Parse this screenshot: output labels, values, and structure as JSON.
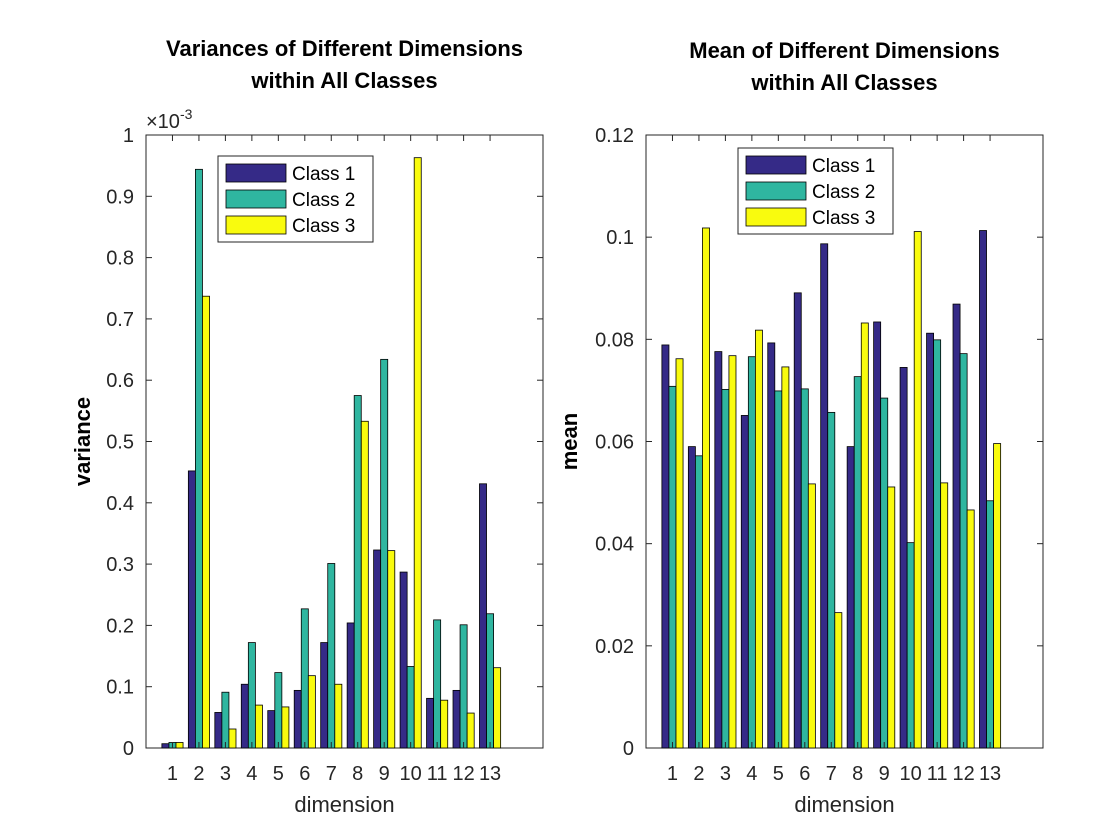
{
  "colors": {
    "class1": "#352a87",
    "class2": "#2fb6a0",
    "class3": "#f9fb0e",
    "axis": "#262626",
    "background": "#ffffff"
  },
  "chart_data": [
    {
      "type": "bar",
      "title": [
        "Variances of Different Dimensions",
        "within All Classes"
      ],
      "xlabel": "dimension",
      "ylabel": "variance",
      "exponent_label": "×10",
      "exponent_power": "-3",
      "ylim": [
        0,
        1
      ],
      "yticks": [
        "0",
        "0.1",
        "0.2",
        "0.3",
        "0.4",
        "0.5",
        "0.6",
        "0.7",
        "0.8",
        "0.9",
        "1"
      ],
      "xlim": [
        0,
        15
      ],
      "categories": [
        "1",
        "2",
        "3",
        "4",
        "5",
        "6",
        "7",
        "8",
        "9",
        "10",
        "11",
        "12",
        "13"
      ],
      "series": [
        {
          "name": "Class 1",
          "values": [
            0.007,
            0.452,
            0.058,
            0.104,
            0.061,
            0.094,
            0.172,
            0.204,
            0.323,
            0.287,
            0.081,
            0.094,
            0.431
          ]
        },
        {
          "name": "Class 2",
          "values": [
            0.009,
            0.944,
            0.091,
            0.172,
            0.123,
            0.227,
            0.301,
            0.575,
            0.634,
            0.133,
            0.209,
            0.201,
            0.219
          ]
        },
        {
          "name": "Class 3",
          "values": [
            0.009,
            0.737,
            0.031,
            0.07,
            0.067,
            0.118,
            0.104,
            0.533,
            0.322,
            0.963,
            0.078,
            0.057,
            0.131
          ]
        }
      ],
      "legend_position": "top-center",
      "grid": false
    },
    {
      "type": "bar",
      "title": [
        "Mean of Different Dimensions",
        "within All Classes"
      ],
      "xlabel": "dimension",
      "ylabel": "mean",
      "ylim": [
        0,
        0.12
      ],
      "yticks": [
        "0",
        "0.02",
        "0.04",
        "0.06",
        "0.08",
        "0.1",
        "0.12"
      ],
      "xlim": [
        0,
        15
      ],
      "categories": [
        "1",
        "2",
        "3",
        "4",
        "5",
        "6",
        "7",
        "8",
        "9",
        "10",
        "11",
        "12",
        "13"
      ],
      "series": [
        {
          "name": "Class 1",
          "values": [
            0.0789,
            0.059,
            0.0776,
            0.0651,
            0.0793,
            0.0891,
            0.0987,
            0.059,
            0.0834,
            0.0745,
            0.0812,
            0.0869,
            0.1013
          ]
        },
        {
          "name": "Class 2",
          "values": [
            0.0708,
            0.0572,
            0.0702,
            0.0766,
            0.0699,
            0.0703,
            0.0657,
            0.0727,
            0.0685,
            0.0402,
            0.0799,
            0.0772,
            0.0484
          ]
        },
        {
          "name": "Class 3",
          "values": [
            0.0762,
            0.1018,
            0.0768,
            0.0818,
            0.0746,
            0.0517,
            0.0265,
            0.0832,
            0.0511,
            0.1011,
            0.0519,
            0.0466,
            0.0596
          ]
        }
      ],
      "legend_position": "top-center",
      "grid": false
    }
  ]
}
